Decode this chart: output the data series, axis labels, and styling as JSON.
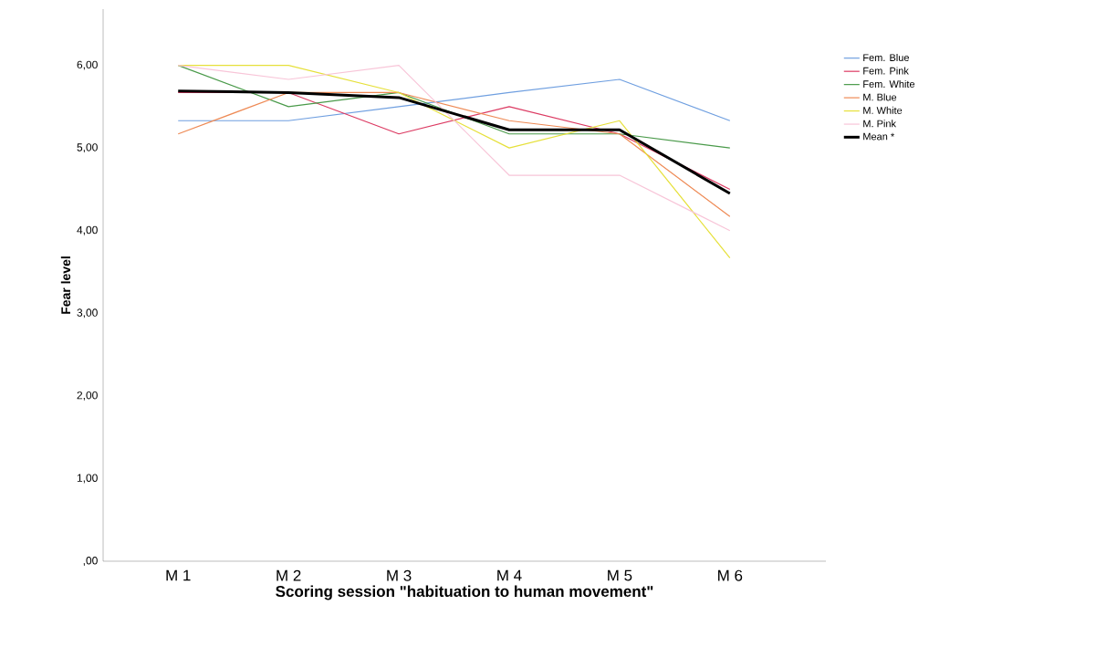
{
  "chart_data": {
    "type": "line",
    "xlabel": "Scoring session \"habituation to human movement\"",
    "ylabel": "Fear level",
    "categories": [
      "M 1",
      "M 2",
      "M 3",
      "M 4",
      "M 5",
      "M 6"
    ],
    "series": [
      {
        "name": "Fem. Blue",
        "color": "#6f9fe0",
        "values": [
          5.33,
          5.33,
          5.5,
          5.67,
          5.83,
          5.33
        ]
      },
      {
        "name": "Fem. Pink",
        "color": "#dc3a62",
        "values": [
          5.67,
          5.67,
          5.17,
          5.5,
          5.17,
          4.5
        ]
      },
      {
        "name": "Fem. White",
        "color": "#4a9a4a",
        "values": [
          6.0,
          5.5,
          5.67,
          5.17,
          5.17,
          5.0
        ]
      },
      {
        "name": "M. Blue",
        "color": "#ee8a55",
        "values": [
          5.17,
          5.67,
          5.67,
          5.33,
          5.17,
          4.17
        ]
      },
      {
        "name": "M. White",
        "color": "#e6e03a",
        "values": [
          6.0,
          6.0,
          5.67,
          5.0,
          5.33,
          3.67
        ]
      },
      {
        "name": "M. Pink",
        "color": "#f8c5d8",
        "values": [
          6.0,
          5.83,
          6.0,
          4.67,
          4.67,
          4.0
        ]
      },
      {
        "name": "Mean *",
        "color": "#000000",
        "values": [
          5.69,
          5.67,
          5.61,
          5.22,
          5.22,
          4.45
        ]
      }
    ],
    "ylim": [
      0,
      6.68
    ],
    "yticks": [
      {
        "value": 0,
        "label": ",00"
      },
      {
        "value": 1,
        "label": "1,00"
      },
      {
        "value": 2,
        "label": "2,00"
      },
      {
        "value": 3,
        "label": "3,00"
      },
      {
        "value": 4,
        "label": "4,00"
      },
      {
        "value": 5,
        "label": "5,00"
      },
      {
        "value": 6,
        "label": "6,00"
      }
    ],
    "legend": "top right",
    "grid": false,
    "marker": "none",
    "line_style": "solid"
  }
}
